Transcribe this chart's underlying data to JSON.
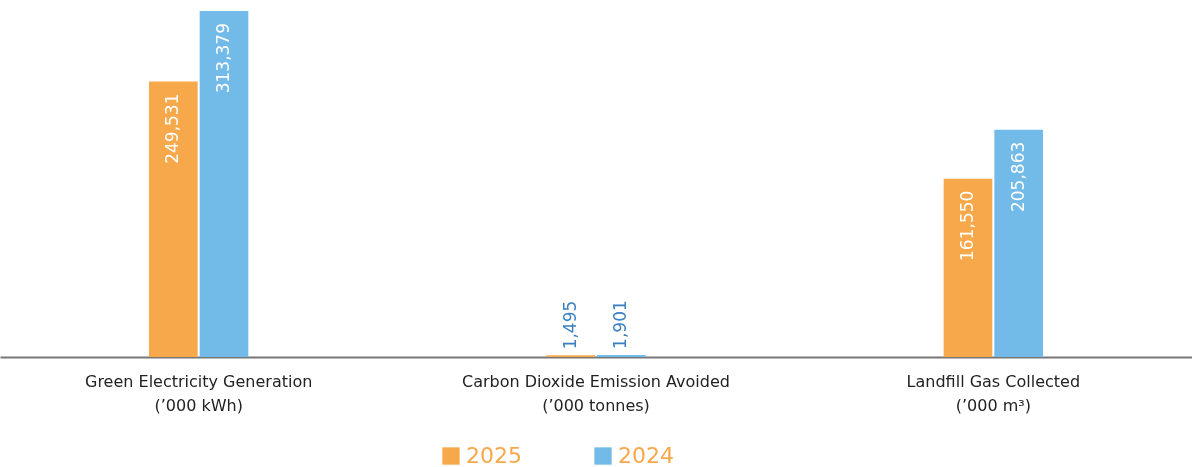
{
  "chart_data": {
    "type": "bar",
    "categories": [
      "Green Electricity Generation\n(’000 kWh)",
      "Carbon Dioxide Emission Avoided\n(’000 tonnes)",
      "Landfill Gas Collected\n(’000 m³)"
    ],
    "series": [
      {
        "name": "2025",
        "color": "#f7a84a",
        "values": [
          249531,
          1495,
          161550
        ],
        "value_labels": [
          "249,531",
          "1,495",
          "161,550"
        ]
      },
      {
        "name": "2024",
        "color": "#72bae7",
        "values": [
          313379,
          1901,
          205863
        ],
        "value_labels": [
          "313,379",
          "1,901",
          "205,863"
        ]
      }
    ],
    "legend": "bottom",
    "grid": false
  }
}
